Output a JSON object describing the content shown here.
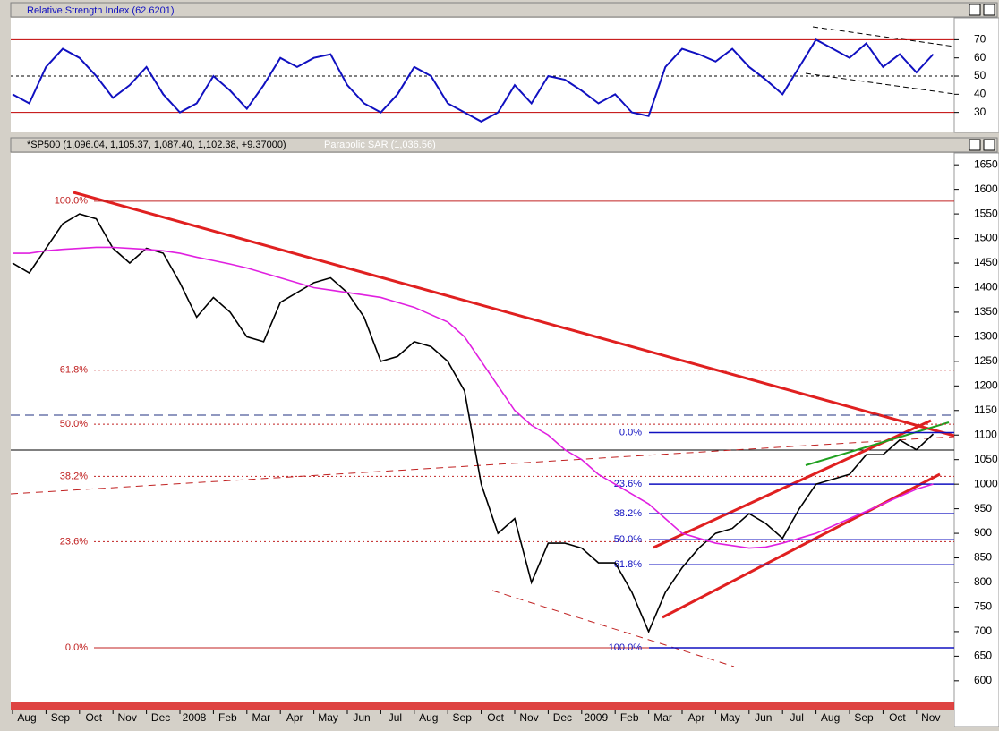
{
  "chart_data": [
    {
      "type": "line",
      "title": "Relative Strength Index (62.6201)",
      "series": [
        {
          "name": "RSI",
          "color": "#1010c0",
          "values": [
            40,
            35,
            55,
            65,
            60,
            50,
            38,
            45,
            55,
            40,
            30,
            35,
            50,
            42,
            32,
            45,
            60,
            55,
            60,
            62,
            45,
            35,
            30,
            40,
            55,
            50,
            35,
            30,
            25,
            30,
            45,
            35,
            50,
            48,
            42,
            35,
            40,
            30,
            28,
            55,
            65,
            62,
            58,
            65,
            55,
            48,
            40,
            55,
            70,
            65,
            60,
            68,
            55,
            62,
            52,
            62
          ]
        }
      ],
      "ylim": [
        19,
        82
      ],
      "yticks": [
        30,
        40,
        50,
        60,
        70
      ],
      "levels": [
        30,
        50,
        70
      ]
    },
    {
      "type": "line",
      "title": "*SP500 (1,096.04, 1,105.37, 1,087.40, 1,102.38, +9.37000)",
      "subtitle": "Parabolic SAR (1,036.56)",
      "categories": [
        "Aug",
        null,
        "Sep",
        null,
        "Oct",
        null,
        "Nov",
        null,
        "Dec",
        null,
        "2008",
        null,
        "Feb",
        null,
        "Mar",
        null,
        "Apr",
        null,
        "May",
        null,
        "Jun",
        null,
        "Jul",
        null,
        "Aug",
        null,
        "Sep",
        null,
        "Oct",
        null,
        "Nov",
        null,
        "Dec",
        null,
        "2009",
        null,
        "Feb",
        null,
        "Mar",
        null,
        "Apr",
        null,
        "May",
        null,
        "Jun",
        null,
        "Jul",
        null,
        "Aug",
        null,
        "Sep",
        null,
        "Oct",
        null,
        "Nov",
        null
      ],
      "series": [
        {
          "name": "SP500",
          "color": "#000000",
          "values": [
            1450,
            1430,
            1480,
            1530,
            1550,
            1540,
            1480,
            1450,
            1480,
            1470,
            1410,
            1340,
            1380,
            1350,
            1300,
            1290,
            1370,
            1390,
            1410,
            1420,
            1390,
            1340,
            1250,
            1260,
            1290,
            1280,
            1250,
            1190,
            1000,
            900,
            930,
            800,
            880,
            880,
            870,
            840,
            840,
            780,
            700,
            780,
            830,
            870,
            900,
            910,
            940,
            920,
            890,
            950,
            1000,
            1010,
            1020,
            1060,
            1060,
            1090,
            1070,
            1102
          ]
        },
        {
          "name": "MA200",
          "color": "#e020e0",
          "values": [
            1470,
            1470,
            1475,
            1478,
            1480,
            1482,
            1482,
            1480,
            1478,
            1475,
            1470,
            1462,
            1455,
            1448,
            1440,
            1430,
            1420,
            1410,
            1400,
            1395,
            1390,
            1385,
            1380,
            1370,
            1360,
            1345,
            1330,
            1300,
            1250,
            1200,
            1150,
            1120,
            1100,
            1070,
            1050,
            1020,
            1000,
            980,
            960,
            930,
            900,
            890,
            880,
            875,
            870,
            872,
            880,
            890,
            900,
            915,
            930,
            945,
            960,
            975,
            990,
            1000
          ]
        }
      ],
      "ylim": [
        556,
        1674
      ],
      "yticks": [
        600,
        650,
        700,
        750,
        800,
        850,
        900,
        950,
        1000,
        1050,
        1100,
        1150,
        1200,
        1250,
        1300,
        1350,
        1400,
        1450,
        1500,
        1550,
        1600,
        1650
      ],
      "retracements_left": [
        {
          "value": 1576,
          "label": "100.0%"
        },
        {
          "value": 1232,
          "label": "61.8%"
        },
        {
          "value": 1122,
          "label": "50.0%"
        },
        {
          "value": 1016,
          "label": "38.2%"
        },
        {
          "value": 883,
          "label": "23.6%"
        },
        {
          "value": 667,
          "label": "0.0%"
        }
      ],
      "retracements_right": [
        {
          "value": 1105,
          "label": "0.0%"
        },
        {
          "value": 1000,
          "label": "23.6%"
        },
        {
          "value": 940,
          "label": "38.2%"
        },
        {
          "value": 887,
          "label": "50.0%"
        },
        {
          "value": 836,
          "label": "61.8%"
        },
        {
          "value": 667,
          "label": "100.0%"
        }
      ]
    }
  ]
}
